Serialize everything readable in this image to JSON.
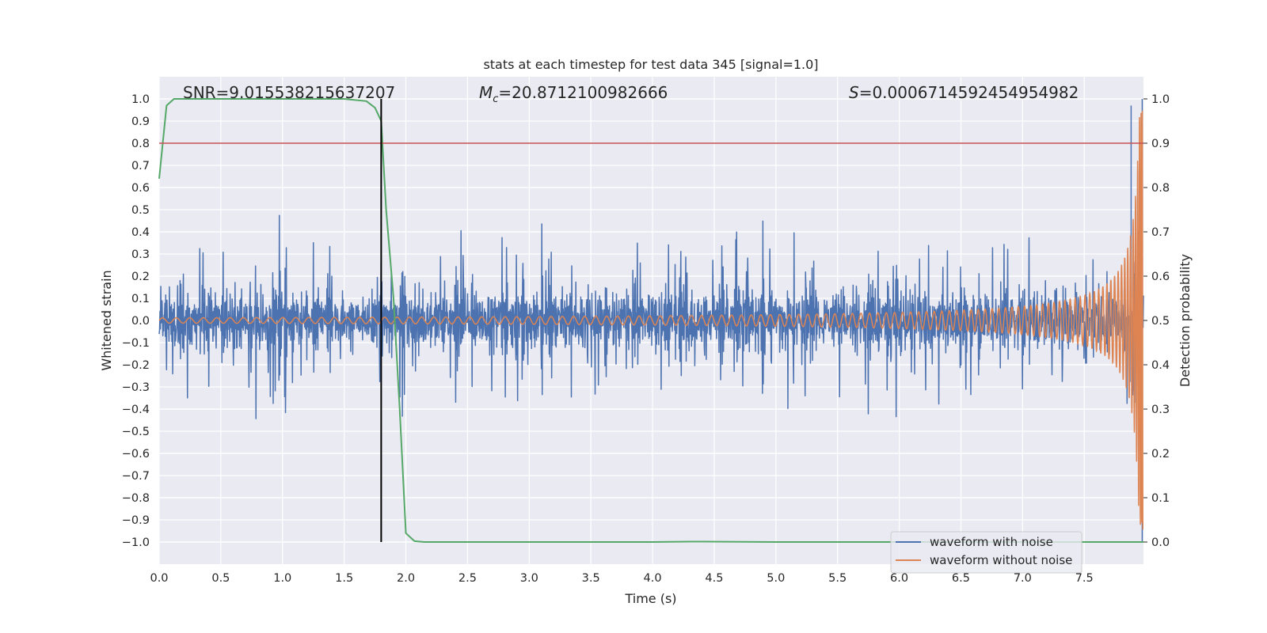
{
  "chart_data": {
    "type": "line",
    "title": "stats at each timestep for test data 345 [signal=1.0]",
    "xlabel": "Time (s)",
    "ylabel": "Whitened strain",
    "y2label": "Detection probability",
    "xlim": [
      0.0,
      7.98
    ],
    "ylim": [
      -1.1,
      1.1
    ],
    "y2lim": [
      -0.05,
      1.05
    ],
    "xticks": [
      "0.0",
      "0.5",
      "1.0",
      "1.5",
      "2.0",
      "2.5",
      "3.0",
      "3.5",
      "4.0",
      "4.5",
      "5.0",
      "5.5",
      "6.0",
      "6.5",
      "7.0",
      "7.5"
    ],
    "xtick_values": [
      0.0,
      0.5,
      1.0,
      1.5,
      2.0,
      2.5,
      3.0,
      3.5,
      4.0,
      4.5,
      5.0,
      5.5,
      6.0,
      6.5,
      7.0,
      7.5
    ],
    "yticks": [
      "1.0",
      "0.9",
      "0.8",
      "0.7",
      "0.6",
      "0.5",
      "0.4",
      "0.3",
      "0.2",
      "0.1",
      "0.0",
      "−0.1",
      "−0.2",
      "−0.3",
      "−0.4",
      "−0.5",
      "−0.6",
      "−0.7",
      "−0.8",
      "−0.9",
      "−1.0"
    ],
    "ytick_values": [
      1.0,
      0.9,
      0.8,
      0.7,
      0.6,
      0.5,
      0.4,
      0.3,
      0.2,
      0.1,
      0.0,
      -0.1,
      -0.2,
      -0.3,
      -0.4,
      -0.5,
      -0.6,
      -0.7,
      -0.8,
      -0.9,
      -1.0
    ],
    "y2ticks": [
      "1.0",
      "0.9",
      "0.8",
      "0.7",
      "0.6",
      "0.5",
      "0.4",
      "0.3",
      "0.2",
      "0.1",
      "0.0"
    ],
    "y2tick_values": [
      1.0,
      0.9,
      0.8,
      0.7,
      0.6,
      0.5,
      0.4,
      0.3,
      0.2,
      0.1,
      0.0
    ],
    "annotations": {
      "snr": "SNR=9.015538215637207",
      "mc_prefix": "M",
      "mc_sub": "c",
      "mc_value": "=20.8712100982666",
      "s_prefix": "S",
      "s_value": "=0.0006714592454954982"
    },
    "threshold": {
      "value": 0.9,
      "axis": "y2",
      "color": "#c44e52"
    },
    "vline": {
      "x": 1.8,
      "color": "#000000"
    },
    "series": [
      {
        "name": "waveform with noise",
        "color": "#4c72b0",
        "axis": "y",
        "kind": "noise",
        "envelope": {
          "typical_amplitude": 0.22,
          "peak_max": 0.97,
          "peak_min": -1.0,
          "seed": 345
        }
      },
      {
        "name": "waveform without noise",
        "color": "#dd8452",
        "axis": "y",
        "kind": "chirp",
        "chirp": {
          "merger_time": 7.98,
          "start_amplitude": 0.012,
          "end_amplitude": 0.95,
          "start_freq_hz": 9.0
        }
      },
      {
        "name": "Detection probability",
        "color": "#55a868",
        "axis": "y2",
        "kind": "line",
        "x": [
          0.0,
          0.06,
          0.12,
          0.3,
          0.8,
          1.2,
          1.5,
          1.68,
          1.75,
          1.8,
          1.84,
          1.9,
          1.95,
          2.0,
          2.07,
          2.15,
          3.0,
          4.0,
          4.3,
          5.0,
          6.0,
          7.0,
          7.98
        ],
        "y": [
          0.82,
          0.985,
          1.0,
          1.0,
          1.0,
          1.0,
          1.0,
          0.995,
          0.98,
          0.95,
          0.75,
          0.55,
          0.3,
          0.02,
          0.002,
          0.0,
          0.0,
          0.0,
          0.001,
          0.0,
          0.0,
          0.0,
          0.0
        ]
      }
    ],
    "legend": {
      "position": "lower-right",
      "items": [
        "waveform with noise",
        "waveform without noise"
      ]
    }
  }
}
